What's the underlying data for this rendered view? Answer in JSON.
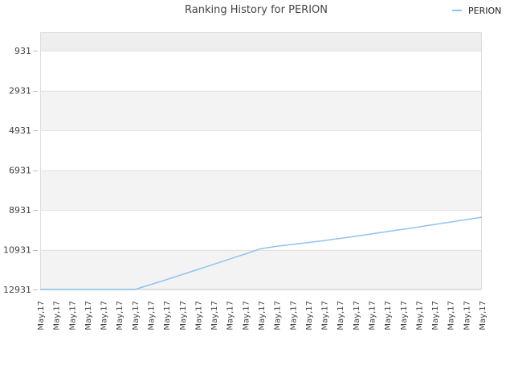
{
  "chart_data": {
    "type": "line",
    "title": "Ranking History for PERION",
    "xlabel": "",
    "ylabel": "",
    "y_inverted": true,
    "ylim": [
      12931,
      0
    ],
    "y_ticks": [
      "931",
      "2931",
      "4931",
      "6931",
      "8931",
      "10931",
      "12931"
    ],
    "x": [
      "May,17",
      "May,17",
      "May,17",
      "May,17",
      "May,17",
      "May,17",
      "May,17",
      "May,17",
      "May,17",
      "May,17",
      "May,17",
      "May,17",
      "May,17",
      "May,17",
      "May,17",
      "May,17",
      "May,17",
      "May,17",
      "May,17",
      "May,17",
      "May,17",
      "May,17",
      "May,17",
      "May,17",
      "May,17",
      "May,17",
      "May,17",
      "May,17",
      "May,17"
    ],
    "series": [
      {
        "name": "PERION",
        "color": "#8fc3ee",
        "values": [
          12931,
          12931,
          12931,
          12931,
          12931,
          12931,
          12931,
          12685,
          12440,
          12180,
          11925,
          11665,
          11405,
          11150,
          10880,
          10760,
          10665,
          10570,
          10470,
          10365,
          10255,
          10140,
          10020,
          9905,
          9790,
          9660,
          9540,
          9420,
          9300
        ]
      }
    ],
    "grid": true,
    "legend": "top-right"
  }
}
